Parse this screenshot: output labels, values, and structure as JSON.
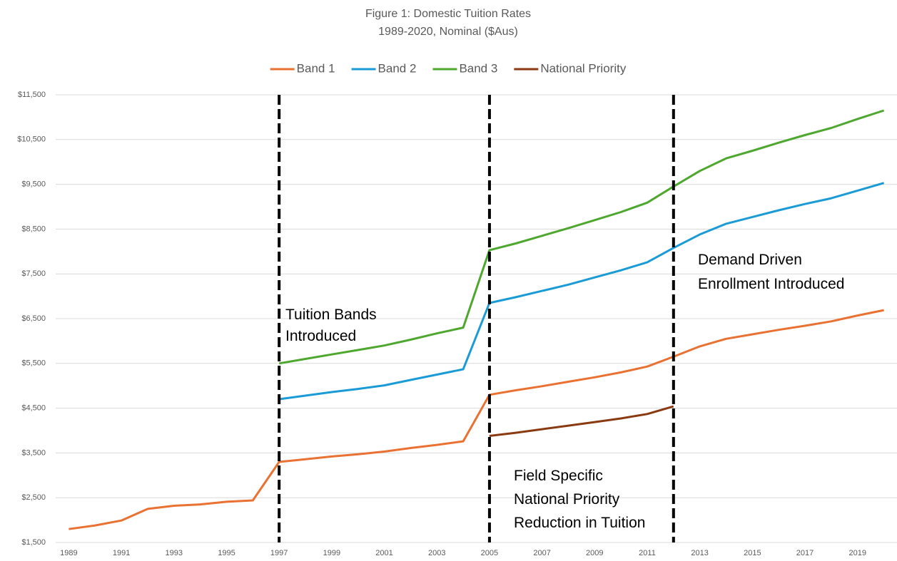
{
  "chart_data": {
    "type": "line",
    "title": "Figure 1: Domestic Tuition Rates",
    "subtitle": "1989-2020, Nominal ($Aus)",
    "x": [
      1989,
      1990,
      1991,
      1992,
      1993,
      1994,
      1995,
      1996,
      1997,
      1998,
      1999,
      2000,
      2001,
      2002,
      2003,
      2004,
      2005,
      2006,
      2007,
      2008,
      2009,
      2010,
      2011,
      2012,
      2013,
      2014,
      2015,
      2016,
      2017,
      2018,
      2019,
      2020
    ],
    "xlim": [
      1988.5,
      2020.5
    ],
    "xticks": [
      1989,
      1991,
      1993,
      1995,
      1997,
      1999,
      2001,
      2003,
      2005,
      2007,
      2009,
      2011,
      2013,
      2015,
      2017,
      2019
    ],
    "ylim": [
      1500,
      11500
    ],
    "yticks": [
      {
        "value": 1500,
        "label": "$1,500"
      },
      {
        "value": 2500,
        "label": "$2,500"
      },
      {
        "value": 3500,
        "label": "$3,500"
      },
      {
        "value": 4500,
        "label": "$4,500"
      },
      {
        "value": 5500,
        "label": "$5,500"
      },
      {
        "value": 6500,
        "label": "$6,500"
      },
      {
        "value": 7500,
        "label": "$7,500"
      },
      {
        "value": 8500,
        "label": "$8,500"
      },
      {
        "value": 9500,
        "label": "$9,500"
      },
      {
        "value": 10500,
        "label": "$10,500"
      },
      {
        "value": 11500,
        "label": "$11,500"
      }
    ],
    "grid": true,
    "legend": "top",
    "series": [
      {
        "name": "Band 1",
        "color": "#e97132",
        "values": [
          1800,
          1880,
          1990,
          2250,
          2320,
          2350,
          2410,
          2440,
          3300,
          3360,
          3420,
          3470,
          3530,
          3610,
          3680,
          3760,
          4800,
          4900,
          4990,
          5090,
          5190,
          5300,
          5430,
          5650,
          5880,
          6050,
          6150,
          6250,
          6340,
          6440,
          6570,
          6690
        ]
      },
      {
        "name": "Band 2",
        "color": "#1b9bd6",
        "values": [
          null,
          null,
          null,
          null,
          null,
          null,
          null,
          null,
          4700,
          4780,
          4860,
          4930,
          5010,
          5130,
          5250,
          5370,
          6850,
          6980,
          7120,
          7260,
          7420,
          7580,
          7760,
          8080,
          8380,
          8620,
          8770,
          8920,
          9060,
          9190,
          9360,
          9530
        ]
      },
      {
        "name": "Band 3",
        "color": "#4ea72e",
        "values": [
          null,
          null,
          null,
          null,
          null,
          null,
          null,
          null,
          5500,
          5600,
          5700,
          5800,
          5900,
          6030,
          6170,
          6300,
          8030,
          8180,
          8350,
          8520,
          8700,
          8880,
          9090,
          9450,
          9800,
          10080,
          10250,
          10430,
          10600,
          10760,
          10960,
          11150
        ]
      },
      {
        "name": "National Priority",
        "color": "#8a3a10",
        "values": [
          null,
          null,
          null,
          null,
          null,
          null,
          null,
          null,
          null,
          null,
          null,
          null,
          null,
          null,
          null,
          null,
          3880,
          3950,
          4030,
          4110,
          4190,
          4270,
          4370,
          4540,
          null,
          null,
          null,
          null,
          null,
          null,
          null,
          null
        ]
      }
    ],
    "annotations": [
      {
        "x": 1997,
        "lines": [
          "Tuition Bands",
          "Introduced"
        ]
      },
      {
        "x": 2005,
        "lines": [
          "Field Specific",
          "National Priority",
          "Reduction in Tuition"
        ]
      },
      {
        "x": 2012,
        "lines": [
          "Demand Driven",
          "Enrollment Introduced"
        ]
      }
    ]
  }
}
